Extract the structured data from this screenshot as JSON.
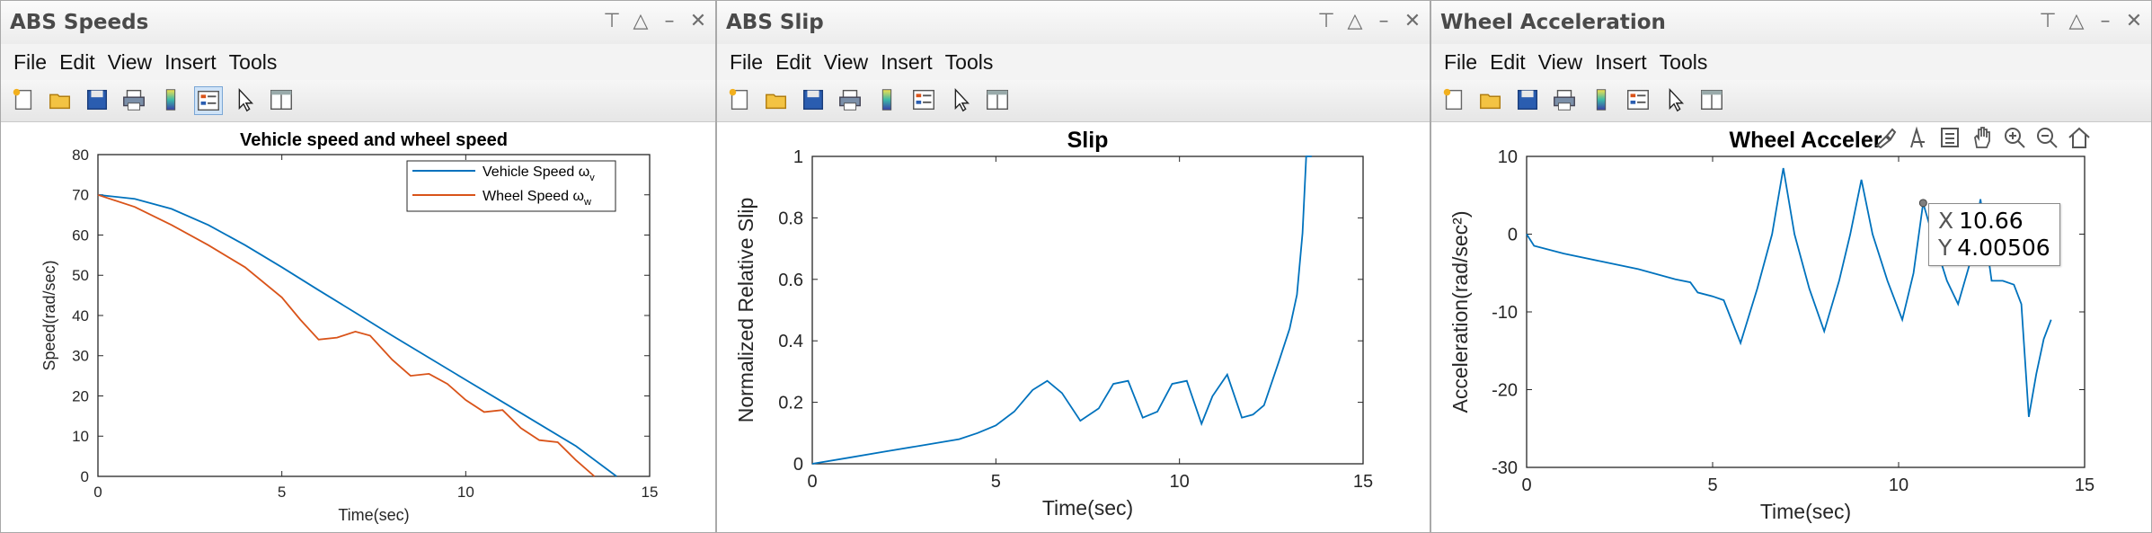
{
  "windows": [
    {
      "title": "ABS Speeds",
      "menus": [
        "File",
        "Edit",
        "View",
        "Insert",
        "Tools"
      ]
    },
    {
      "title": "ABS Slip",
      "menus": [
        "File",
        "Edit",
        "View",
        "Insert",
        "Tools"
      ]
    },
    {
      "title": "Wheel Acceleration",
      "menus": [
        "File",
        "Edit",
        "View",
        "Insert",
        "Tools"
      ]
    }
  ],
  "toolbar_icons": [
    "new-figure-icon",
    "open-file-icon",
    "save-icon",
    "print-icon",
    "colorbar-icon",
    "legend-icon",
    "pointer-icon",
    "property-editor-icon"
  ],
  "window_controls": [
    "pin-icon",
    "maximize-icon",
    "minimize-icon",
    "close-icon"
  ],
  "axes_toolbar_icons": [
    "brush-icon",
    "data-tip-icon",
    "edit-icon",
    "pan-icon",
    "zoom-in-icon",
    "zoom-out-icon",
    "home-icon"
  ],
  "datatip": {
    "x_key": "X",
    "x_val": "10.66",
    "y_key": "Y",
    "y_val": "4.00506"
  },
  "colors": {
    "blue": "#0072bd",
    "orange": "#d95319"
  },
  "chart_data": [
    {
      "type": "line",
      "title": "Vehicle speed and wheel speed",
      "xlabel": "Time(sec)",
      "ylabel": "Speed(rad/sec)",
      "xlim": [
        0,
        15
      ],
      "ylim": [
        0,
        80
      ],
      "xticks": [
        0,
        5,
        10,
        15
      ],
      "yticks": [
        0,
        10,
        20,
        30,
        40,
        50,
        60,
        70,
        80
      ],
      "legend_position": "top-right",
      "legend": [
        {
          "label": "Vehicle Speed ω",
          "sub": "v"
        },
        {
          "label": "Wheel Speed ω",
          "sub": "w"
        }
      ],
      "series": [
        {
          "name": "Vehicle Speed ωv",
          "color": "#0072bd",
          "x": [
            0,
            1,
            2,
            3,
            4,
            5,
            6,
            7,
            8,
            9,
            10,
            11,
            12,
            13,
            14.1
          ],
          "y": [
            70,
            69,
            66.5,
            62.5,
            57.5,
            52,
            46.3,
            40.7,
            35,
            29.5,
            24,
            18.5,
            13,
            7.5,
            0
          ]
        },
        {
          "name": "Wheel Speed ωw",
          "color": "#d95319",
          "x": [
            0,
            1,
            2,
            3,
            4,
            5,
            5.5,
            6,
            6.5,
            7,
            7.4,
            8,
            8.5,
            9,
            9.5,
            10,
            10.5,
            11,
            11.5,
            12,
            12.5,
            13,
            13.5
          ],
          "y": [
            70,
            67,
            62.5,
            57.5,
            52,
            44.5,
            39,
            34,
            34.5,
            36,
            35,
            29,
            25,
            25.5,
            23,
            19,
            16,
            16.5,
            12,
            9,
            8.5,
            4,
            0
          ]
        }
      ]
    },
    {
      "type": "line",
      "title": "Slip",
      "xlabel": "Time(sec)",
      "ylabel": "Normalized Relative Slip",
      "xlim": [
        0,
        15
      ],
      "ylim": [
        0,
        1
      ],
      "xticks": [
        0,
        5,
        10,
        15
      ],
      "yticks": [
        0,
        0.2,
        0.4,
        0.6,
        0.8,
        1
      ],
      "series": [
        {
          "color": "#0072bd",
          "x": [
            0,
            1,
            2,
            3,
            4,
            4.5,
            5,
            5.5,
            6,
            6.4,
            6.8,
            7.3,
            7.8,
            8.2,
            8.6,
            9,
            9.4,
            9.8,
            10.2,
            10.6,
            10.9,
            11.3,
            11.7,
            12,
            12.3,
            12.7,
            13,
            13.2,
            13.35,
            13.45,
            13.6
          ],
          "y": [
            0,
            0.02,
            0.04,
            0.06,
            0.08,
            0.1,
            0.125,
            0.17,
            0.24,
            0.27,
            0.23,
            0.14,
            0.18,
            0.26,
            0.27,
            0.15,
            0.17,
            0.26,
            0.27,
            0.13,
            0.22,
            0.29,
            0.15,
            0.16,
            0.19,
            0.33,
            0.44,
            0.55,
            0.75,
            1,
            1
          ]
        }
      ]
    },
    {
      "type": "line",
      "title": "Wheel Acceler",
      "xlabel": "Time(sec)",
      "ylabel": "Acceleration(rad/sec²)",
      "xlim": [
        0,
        15
      ],
      "ylim": [
        -30,
        10
      ],
      "xticks": [
        0,
        5,
        10,
        15
      ],
      "yticks": [
        -30,
        -20,
        -10,
        0,
        10
      ],
      "series": [
        {
          "color": "#0072bd",
          "x": [
            0,
            0.2,
            1,
            2,
            3,
            4,
            4.4,
            4.6,
            5,
            5.3,
            5.75,
            6.2,
            6.6,
            6.9,
            7.2,
            7.6,
            8,
            8.4,
            8.7,
            9,
            9.3,
            9.7,
            10.1,
            10.4,
            10.66,
            10.9,
            11.3,
            11.6,
            11.9,
            12.2,
            12.5,
            12.8,
            13.1,
            13.3,
            13.5,
            13.7,
            13.9,
            14.1
          ],
          "y": [
            0,
            -1.5,
            -2.5,
            -3.5,
            -4.5,
            -5.8,
            -6.2,
            -7.5,
            -8,
            -8.5,
            -14,
            -7,
            0,
            8.5,
            0,
            -7,
            -12.5,
            -6,
            0,
            7,
            0,
            -6,
            -11,
            -5,
            4,
            0,
            -6,
            -9,
            -4,
            4.5,
            -6,
            -6,
            -6.5,
            -9,
            -23.5,
            -18,
            -13.5,
            -11
          ]
        }
      ]
    }
  ]
}
